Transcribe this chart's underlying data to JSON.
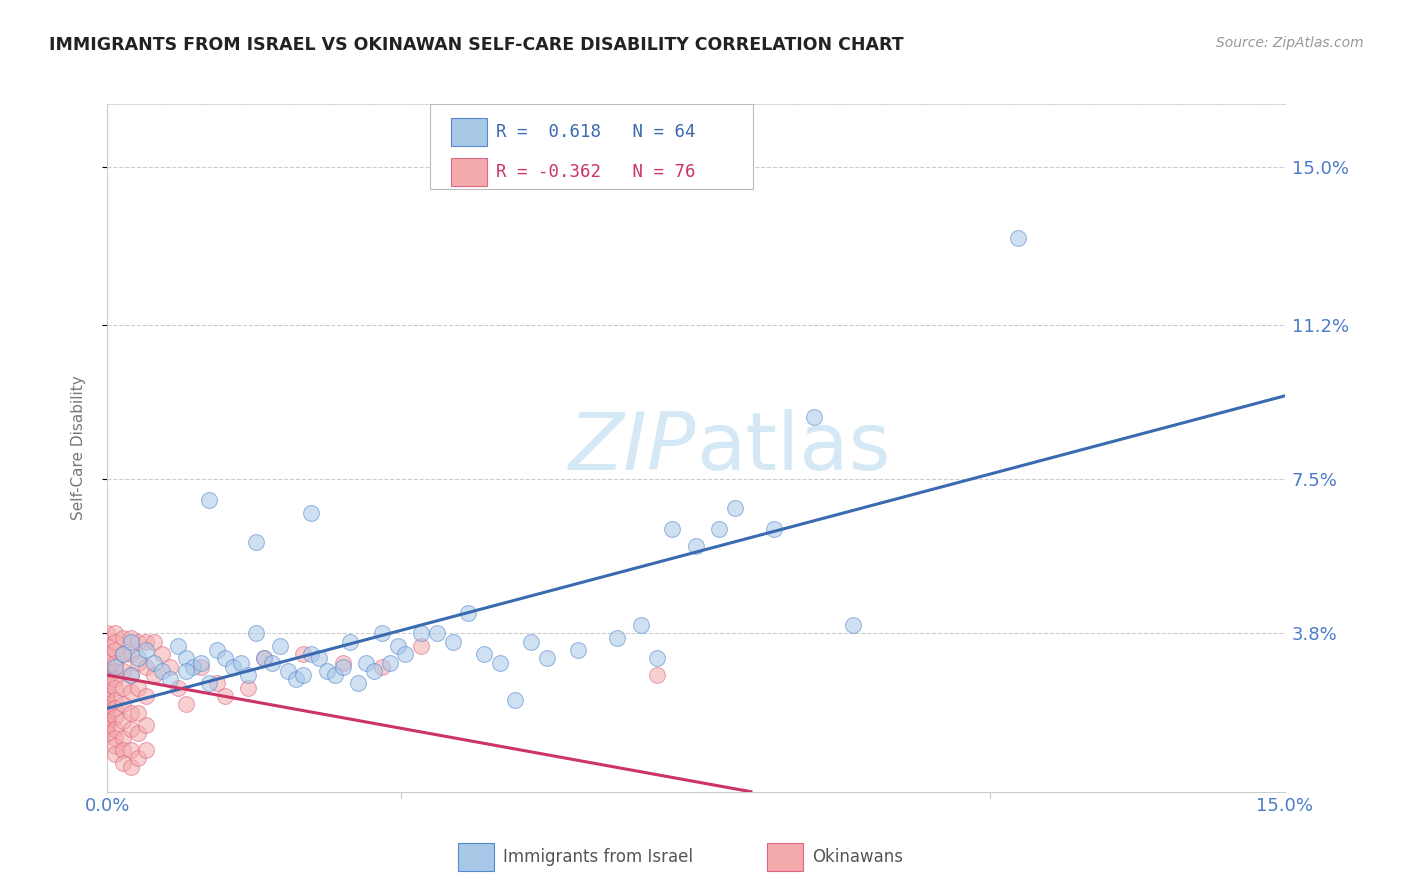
{
  "title": "IMMIGRANTS FROM ISRAEL VS OKINAWAN SELF-CARE DISABILITY CORRELATION CHART",
  "source": "Source: ZipAtlas.com",
  "ylabel": "Self-Care Disability",
  "xlim": [
    0.0,
    0.15
  ],
  "ylim": [
    0.0,
    0.165
  ],
  "legend_r1_val": "0.618",
  "legend_r2_val": "-0.362",
  "legend_n1": "64",
  "legend_n2": "76",
  "blue_color": "#a8c8e8",
  "pink_color": "#f4aaaa",
  "blue_edge_color": "#5588cc",
  "pink_edge_color": "#dd6688",
  "blue_line_color": "#3a6ab0",
  "pink_line_color": "#cc3366",
  "tick_color": "#4a7cc7",
  "watermark_color": "#d5e8f5",
  "legend_label_blue": "Immigrants from Israel",
  "legend_label_pink": "Okinawans",
  "blue_scatter": [
    [
      0.001,
      0.03
    ],
    [
      0.002,
      0.033
    ],
    [
      0.003,
      0.028
    ],
    [
      0.004,
      0.032
    ],
    [
      0.005,
      0.034
    ],
    [
      0.003,
      0.036
    ],
    [
      0.006,
      0.031
    ],
    [
      0.007,
      0.029
    ],
    [
      0.008,
      0.027
    ],
    [
      0.009,
      0.035
    ],
    [
      0.01,
      0.032
    ],
    [
      0.011,
      0.03
    ],
    [
      0.012,
      0.031
    ],
    [
      0.01,
      0.029
    ],
    [
      0.013,
      0.026
    ],
    [
      0.014,
      0.034
    ],
    [
      0.015,
      0.032
    ],
    [
      0.016,
      0.03
    ],
    [
      0.017,
      0.031
    ],
    [
      0.018,
      0.028
    ],
    [
      0.019,
      0.038
    ],
    [
      0.02,
      0.032
    ],
    [
      0.021,
      0.031
    ],
    [
      0.022,
      0.035
    ],
    [
      0.023,
      0.029
    ],
    [
      0.024,
      0.027
    ],
    [
      0.025,
      0.028
    ],
    [
      0.026,
      0.033
    ],
    [
      0.027,
      0.032
    ],
    [
      0.028,
      0.029
    ],
    [
      0.029,
      0.028
    ],
    [
      0.03,
      0.03
    ],
    [
      0.031,
      0.036
    ],
    [
      0.032,
      0.026
    ],
    [
      0.033,
      0.031
    ],
    [
      0.034,
      0.029
    ],
    [
      0.035,
      0.038
    ],
    [
      0.036,
      0.031
    ],
    [
      0.037,
      0.035
    ],
    [
      0.038,
      0.033
    ],
    [
      0.04,
      0.038
    ],
    [
      0.042,
      0.038
    ],
    [
      0.044,
      0.036
    ],
    [
      0.046,
      0.043
    ],
    [
      0.048,
      0.033
    ],
    [
      0.05,
      0.031
    ],
    [
      0.052,
      0.022
    ],
    [
      0.054,
      0.036
    ],
    [
      0.056,
      0.032
    ],
    [
      0.06,
      0.034
    ],
    [
      0.065,
      0.037
    ],
    [
      0.068,
      0.04
    ],
    [
      0.07,
      0.032
    ],
    [
      0.072,
      0.063
    ],
    [
      0.075,
      0.059
    ],
    [
      0.078,
      0.063
    ],
    [
      0.08,
      0.068
    ],
    [
      0.085,
      0.063
    ],
    [
      0.09,
      0.09
    ],
    [
      0.095,
      0.04
    ],
    [
      0.013,
      0.07
    ],
    [
      0.019,
      0.06
    ],
    [
      0.026,
      0.067
    ],
    [
      0.116,
      0.133
    ]
  ],
  "pink_scatter": [
    [
      0.0,
      0.038
    ],
    [
      0.0,
      0.035
    ],
    [
      0.0,
      0.033
    ],
    [
      0.0,
      0.031
    ],
    [
      0.0,
      0.029
    ],
    [
      0.0,
      0.027
    ],
    [
      0.0,
      0.026
    ],
    [
      0.0,
      0.024
    ],
    [
      0.0,
      0.023
    ],
    [
      0.0,
      0.022
    ],
    [
      0.0,
      0.021
    ],
    [
      0.0,
      0.02
    ],
    [
      0.0,
      0.019
    ],
    [
      0.0,
      0.018
    ],
    [
      0.0,
      0.017
    ],
    [
      0.0,
      0.016
    ],
    [
      0.0,
      0.015
    ],
    [
      0.0,
      0.014
    ],
    [
      0.001,
      0.038
    ],
    [
      0.001,
      0.036
    ],
    [
      0.001,
      0.034
    ],
    [
      0.001,
      0.031
    ],
    [
      0.001,
      0.029
    ],
    [
      0.001,
      0.027
    ],
    [
      0.001,
      0.025
    ],
    [
      0.001,
      0.022
    ],
    [
      0.001,
      0.02
    ],
    [
      0.001,
      0.018
    ],
    [
      0.001,
      0.015
    ],
    [
      0.001,
      0.013
    ],
    [
      0.001,
      0.011
    ],
    [
      0.001,
      0.009
    ],
    [
      0.002,
      0.037
    ],
    [
      0.002,
      0.033
    ],
    [
      0.002,
      0.029
    ],
    [
      0.002,
      0.025
    ],
    [
      0.002,
      0.021
    ],
    [
      0.002,
      0.017
    ],
    [
      0.002,
      0.013
    ],
    [
      0.002,
      0.01
    ],
    [
      0.002,
      0.007
    ],
    [
      0.003,
      0.037
    ],
    [
      0.003,
      0.033
    ],
    [
      0.003,
      0.028
    ],
    [
      0.003,
      0.024
    ],
    [
      0.003,
      0.019
    ],
    [
      0.003,
      0.015
    ],
    [
      0.003,
      0.01
    ],
    [
      0.003,
      0.006
    ],
    [
      0.004,
      0.036
    ],
    [
      0.004,
      0.031
    ],
    [
      0.004,
      0.025
    ],
    [
      0.004,
      0.019
    ],
    [
      0.004,
      0.014
    ],
    [
      0.004,
      0.008
    ],
    [
      0.005,
      0.036
    ],
    [
      0.005,
      0.03
    ],
    [
      0.005,
      0.023
    ],
    [
      0.005,
      0.016
    ],
    [
      0.005,
      0.01
    ],
    [
      0.006,
      0.036
    ],
    [
      0.006,
      0.028
    ],
    [
      0.007,
      0.033
    ],
    [
      0.008,
      0.03
    ],
    [
      0.009,
      0.025
    ],
    [
      0.01,
      0.021
    ],
    [
      0.012,
      0.03
    ],
    [
      0.014,
      0.026
    ],
    [
      0.015,
      0.023
    ],
    [
      0.018,
      0.025
    ],
    [
      0.02,
      0.032
    ],
    [
      0.025,
      0.033
    ],
    [
      0.03,
      0.031
    ],
    [
      0.035,
      0.03
    ],
    [
      0.04,
      0.035
    ],
    [
      0.07,
      0.028
    ]
  ],
  "blue_line": [
    [
      0.0,
      0.02
    ],
    [
      0.15,
      0.095
    ]
  ],
  "pink_line": [
    [
      0.0,
      0.028
    ],
    [
      0.082,
      0.0
    ]
  ],
  "background_color": "#ffffff",
  "grid_color": "#cccccc"
}
